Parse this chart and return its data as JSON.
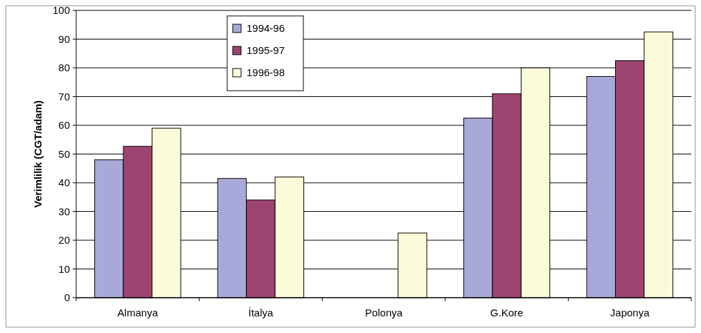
{
  "chart_data": {
    "type": "bar",
    "ylabel": "Verimlilik (CGT/adam)",
    "categories": [
      "Almanya",
      "İtalya",
      "Polonya",
      "G.Kore",
      "Japonya"
    ],
    "series": [
      {
        "name": "1994-96",
        "color": "#a9a9d9",
        "values": [
          48,
          41.5,
          null,
          62.5,
          77
        ]
      },
      {
        "name": "1995-97",
        "color": "#9e4470",
        "values": [
          52.7,
          34,
          null,
          71,
          82.5
        ]
      },
      {
        "name": "1996-98",
        "color": "#fbfbd9",
        "values": [
          59,
          42,
          22.5,
          80,
          92.5
        ]
      }
    ],
    "ylim": [
      0,
      100
    ],
    "yticks": [
      0,
      10,
      20,
      30,
      40,
      50,
      60,
      70,
      80,
      90,
      100
    ],
    "grid": "y",
    "legend": "top"
  }
}
